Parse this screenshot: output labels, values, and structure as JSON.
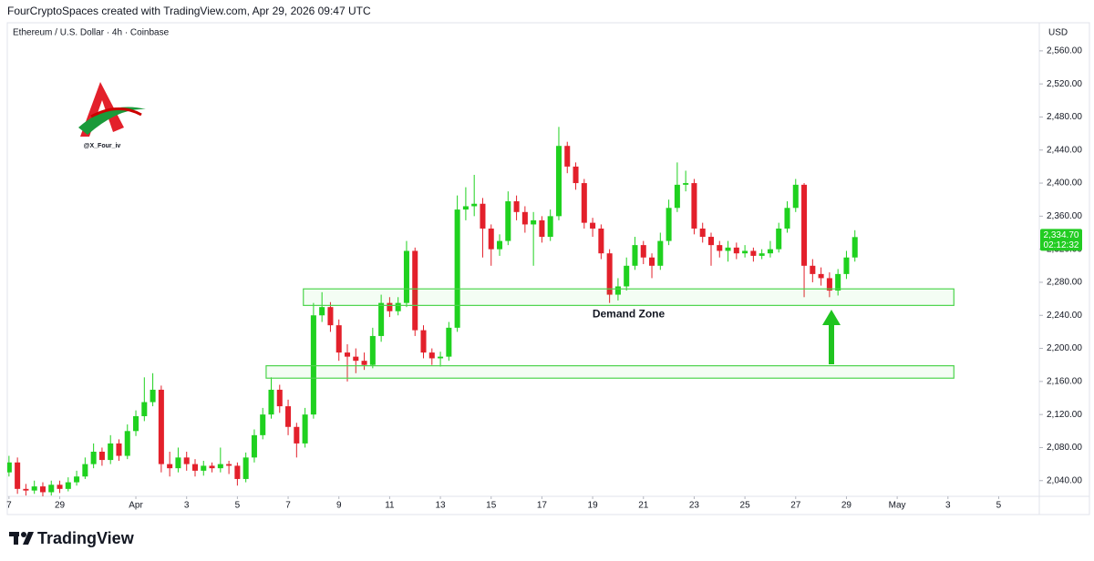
{
  "header": {
    "attribution": "FourCryptoSpaces created with TradingView.com, Apr 29, 2026 09:47 UTC"
  },
  "footer": {
    "brand": "TradingView"
  },
  "chart_data": {
    "type": "candlestick",
    "title": "Ethereum / U.S. Dollar · 4h · Coinbase",
    "y_axis_label": "USD",
    "watermark": "@X_Four_iv",
    "up_color": "#1fd11f",
    "down_color": "#e3202b",
    "open": [
      2050,
      2062,
      2030,
      2028,
      2033,
      2026,
      2035,
      2030,
      2038,
      2045,
      2060,
      2075,
      2065,
      2085,
      2070,
      2100,
      2118,
      2135,
      2150,
      2060,
      2055,
      2068,
      2060,
      2052,
      2058,
      2055,
      2060,
      2058,
      2042,
      2068,
      2095,
      2120,
      2150,
      2130,
      2105,
      2085,
      2120,
      2240,
      2250,
      2228,
      2195,
      2190,
      2185,
      2180,
      2215,
      2255,
      2245,
      2255,
      2318,
      2222,
      2195,
      2188,
      2190,
      2225,
      2368,
      2372,
      2375,
      2345,
      2320,
      2330,
      2378,
      2365,
      2350,
      2355,
      2335,
      2360,
      2445,
      2420,
      2400,
      2352,
      2345,
      2315,
      2265,
      2275,
      2300,
      2325,
      2310,
      2300,
      2330,
      2370,
      2398,
      2400,
      2345,
      2335,
      2325,
      2318,
      2322,
      2315,
      2318,
      2312,
      2315,
      2320,
      2345,
      2370,
      2398,
      2300,
      2290,
      2285,
      2270,
      2290,
      2310
    ],
    "high": [
      2070,
      2068,
      2036,
      2040,
      2038,
      2040,
      2040,
      2044,
      2052,
      2068,
      2085,
      2080,
      2095,
      2090,
      2108,
      2125,
      2165,
      2170,
      2155,
      2075,
      2080,
      2075,
      2066,
      2064,
      2062,
      2080,
      2064,
      2062,
      2074,
      2102,
      2128,
      2165,
      2156,
      2138,
      2110,
      2128,
      2255,
      2268,
      2256,
      2235,
      2205,
      2200,
      2195,
      2225,
      2265,
      2262,
      2262,
      2330,
      2322,
      2228,
      2200,
      2196,
      2232,
      2385,
      2395,
      2410,
      2382,
      2350,
      2338,
      2390,
      2385,
      2372,
      2365,
      2360,
      2368,
      2468,
      2450,
      2425,
      2405,
      2358,
      2350,
      2320,
      2285,
      2310,
      2335,
      2330,
      2315,
      2340,
      2380,
      2425,
      2415,
      2405,
      2352,
      2340,
      2330,
      2330,
      2328,
      2325,
      2322,
      2320,
      2330,
      2352,
      2378,
      2405,
      2400,
      2308,
      2298,
      2292,
      2296,
      2318,
      2343
    ],
    "low": [
      2045,
      2024,
      2022,
      2024,
      2020,
      2022,
      2025,
      2027,
      2034,
      2042,
      2055,
      2058,
      2060,
      2064,
      2066,
      2094,
      2112,
      2130,
      2050,
      2045,
      2050,
      2052,
      2045,
      2046,
      2050,
      2050,
      2048,
      2034,
      2038,
      2062,
      2090,
      2115,
      2122,
      2095,
      2068,
      2080,
      2115,
      2232,
      2220,
      2185,
      2160,
      2170,
      2174,
      2176,
      2208,
      2238,
      2240,
      2250,
      2215,
      2188,
      2180,
      2178,
      2185,
      2220,
      2355,
      2360,
      2310,
      2300,
      2312,
      2325,
      2355,
      2340,
      2300,
      2328,
      2330,
      2355,
      2412,
      2392,
      2345,
      2335,
      2308,
      2255,
      2258,
      2270,
      2295,
      2302,
      2285,
      2295,
      2325,
      2365,
      2390,
      2338,
      2328,
      2300,
      2310,
      2305,
      2308,
      2310,
      2305,
      2308,
      2310,
      2316,
      2340,
      2365,
      2262,
      2280,
      2276,
      2262,
      2264,
      2284,
      2305
    ],
    "close": [
      2062,
      2030,
      2028,
      2033,
      2026,
      2035,
      2030,
      2038,
      2045,
      2060,
      2075,
      2065,
      2085,
      2070,
      2100,
      2118,
      2135,
      2150,
      2060,
      2055,
      2068,
      2060,
      2052,
      2058,
      2055,
      2060,
      2058,
      2042,
      2068,
      2095,
      2120,
      2150,
      2130,
      2105,
      2085,
      2120,
      2240,
      2250,
      2228,
      2195,
      2190,
      2185,
      2180,
      2215,
      2255,
      2245,
      2255,
      2318,
      2222,
      2195,
      2188,
      2190,
      2225,
      2368,
      2372,
      2375,
      2345,
      2320,
      2330,
      2378,
      2365,
      2350,
      2355,
      2335,
      2360,
      2445,
      2420,
      2400,
      2352,
      2345,
      2315,
      2265,
      2275,
      2300,
      2325,
      2310,
      2300,
      2330,
      2370,
      2398,
      2400,
      2345,
      2335,
      2325,
      2318,
      2322,
      2315,
      2318,
      2312,
      2315,
      2320,
      2345,
      2370,
      2398,
      2300,
      2290,
      2285,
      2270,
      2290,
      2310,
      2334.7
    ],
    "xlim": [
      -0.2,
      121.8
    ],
    "xticks": [
      {
        "value": 0,
        "label": "7"
      },
      {
        "value": 6,
        "label": "29"
      },
      {
        "value": 15,
        "label": "Apr"
      },
      {
        "value": 21,
        "label": "3"
      },
      {
        "value": 27,
        "label": "5"
      },
      {
        "value": 33,
        "label": "7"
      },
      {
        "value": 39,
        "label": "9"
      },
      {
        "value": 45,
        "label": "11"
      },
      {
        "value": 51,
        "label": "13"
      },
      {
        "value": 57,
        "label": "15"
      },
      {
        "value": 63,
        "label": "17"
      },
      {
        "value": 69,
        "label": "19"
      },
      {
        "value": 75,
        "label": "21"
      },
      {
        "value": 81,
        "label": "23"
      },
      {
        "value": 87,
        "label": "25"
      },
      {
        "value": 93,
        "label": "27"
      },
      {
        "value": 99,
        "label": "29"
      },
      {
        "value": 105,
        "label": "May"
      },
      {
        "value": 111,
        "label": "3"
      },
      {
        "value": 117,
        "label": "5"
      }
    ],
    "ylim": [
      2021,
      2594
    ],
    "yticks": [
      {
        "value": 2040,
        "label": "2,040.00"
      },
      {
        "value": 2080,
        "label": "2,080.00"
      },
      {
        "value": 2120,
        "label": "2,120.00"
      },
      {
        "value": 2160,
        "label": "2,160.00"
      },
      {
        "value": 2200,
        "label": "2,200.00"
      },
      {
        "value": 2240,
        "label": "2,240.00"
      },
      {
        "value": 2280,
        "label": "2,280.00"
      },
      {
        "value": 2320,
        "label": "2,320.00"
      },
      {
        "value": 2360,
        "label": "2,360.00"
      },
      {
        "value": 2400,
        "label": "2,400.00"
      },
      {
        "value": 2440,
        "label": "2,440.00"
      },
      {
        "value": 2480,
        "label": "2,480.00"
      },
      {
        "value": 2520,
        "label": "2,520.00"
      },
      {
        "value": 2560,
        "label": "2,560.00"
      }
    ],
    "grid": false,
    "zones": [
      {
        "label": "Demand Zone",
        "x": [
          34.8,
          111.7
        ],
        "y": [
          2252,
          2272
        ]
      },
      {
        "x": [
          30.4,
          111.7
        ],
        "y": [
          2164,
          2179
        ]
      }
    ],
    "last_price": {
      "value": 2334.7,
      "label": "2,334.70",
      "countdown": "02:12:32"
    }
  }
}
